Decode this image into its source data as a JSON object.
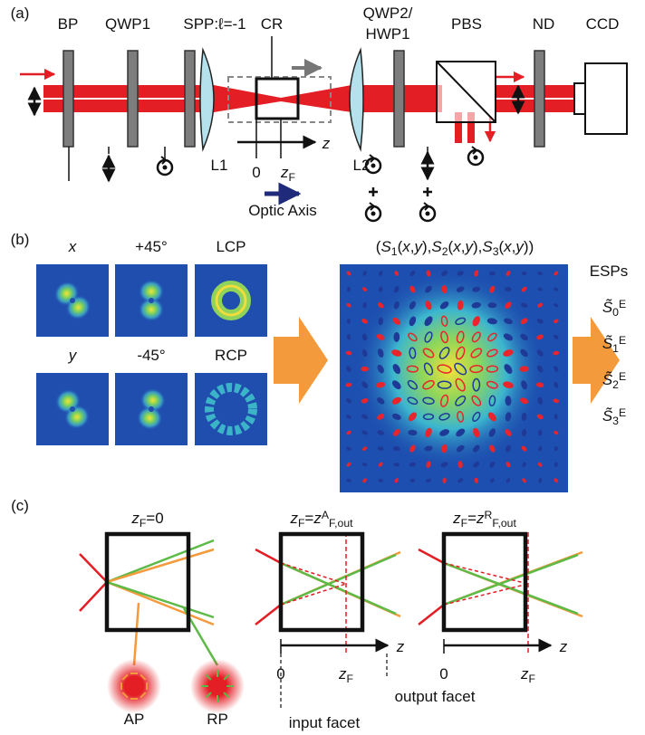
{
  "panel_a": {
    "label": "(a)",
    "components": {
      "bp": "BP",
      "qwp1": "QWP1",
      "spp": "SPP:ℓ=-1",
      "cr": "CR",
      "qwp2": [
        "QWP2/",
        "HWP1"
      ],
      "pbs": "PBS",
      "nd": "ND",
      "ccd": "CCD",
      "l1": "L1",
      "l2": "L2"
    },
    "axis": {
      "origin": "0",
      "z": "z",
      "zf": [
        {
          "ital": "z"
        },
        {
          "sub": "F"
        }
      ]
    },
    "optic_axis": "Optic Axis"
  },
  "panel_b": {
    "label": "(b)",
    "images": [
      [
        {
          "ital": "x"
        }
      ],
      [
        {
          "text": "+45°"
        }
      ],
      [
        {
          "text": "LCP"
        }
      ],
      [
        {
          "ital": "y"
        }
      ],
      [
        {
          "text": "-45°"
        }
      ],
      [
        {
          "text": "RCP"
        }
      ]
    ],
    "stokes": [
      {
        "text": "("
      },
      {
        "ital": "S"
      },
      {
        "sub": "1"
      },
      {
        "text": "("
      },
      {
        "ital": "x"
      },
      {
        "text": ","
      },
      {
        "ital": "y"
      },
      {
        "text": "),"
      },
      {
        "ital": "S"
      },
      {
        "sub": "2"
      },
      {
        "text": "("
      },
      {
        "ital": "x"
      },
      {
        "text": ","
      },
      {
        "ital": "y"
      },
      {
        "text": "),"
      },
      {
        "ital": "S"
      },
      {
        "sub": "3"
      },
      {
        "text": "("
      },
      {
        "ital": "x"
      },
      {
        "text": ","
      },
      {
        "ital": "y"
      },
      {
        "text": "))"
      }
    ],
    "esps_title": "ESPs",
    "esps": [
      [
        {
          "ital": "S̃"
        },
        {
          "sub": "0"
        },
        {
          "sup": "E"
        }
      ],
      [
        {
          "ital": "S̃"
        },
        {
          "sub": "1"
        },
        {
          "sup": "E"
        }
      ],
      [
        {
          "ital": "S̃"
        },
        {
          "sub": "2"
        },
        {
          "sup": "E"
        }
      ],
      [
        {
          "ital": "S̃"
        },
        {
          "sub": "3"
        },
        {
          "sup": "E"
        }
      ]
    ]
  },
  "panel_c": {
    "label": "(c)",
    "cases": [
      {
        "title": [
          {
            "ital": "z"
          },
          {
            "sub": "F"
          },
          {
            "text": "=0"
          }
        ]
      },
      {
        "title": [
          {
            "ital": "z"
          },
          {
            "sub": "F"
          },
          {
            "text": "="
          },
          {
            "ital": "z"
          },
          {
            "sup": "A"
          },
          {
            "sub": "F,out"
          }
        ],
        "origin": "0",
        "z": "z",
        "zf": [
          {
            "ital": "z"
          },
          {
            "sub": "F"
          }
        ]
      },
      {
        "title": [
          {
            "ital": "z"
          },
          {
            "sub": "F"
          },
          {
            "text": "="
          },
          {
            "ital": "z"
          },
          {
            "sup": "R"
          },
          {
            "sub": "F,out"
          }
        ],
        "origin": "0",
        "z": "z",
        "zf": [
          {
            "ital": "z"
          },
          {
            "sub": "F"
          }
        ]
      }
    ],
    "ap": "AP",
    "rp": "RP",
    "input_facet": "input facet",
    "output_facet": "output facet"
  }
}
